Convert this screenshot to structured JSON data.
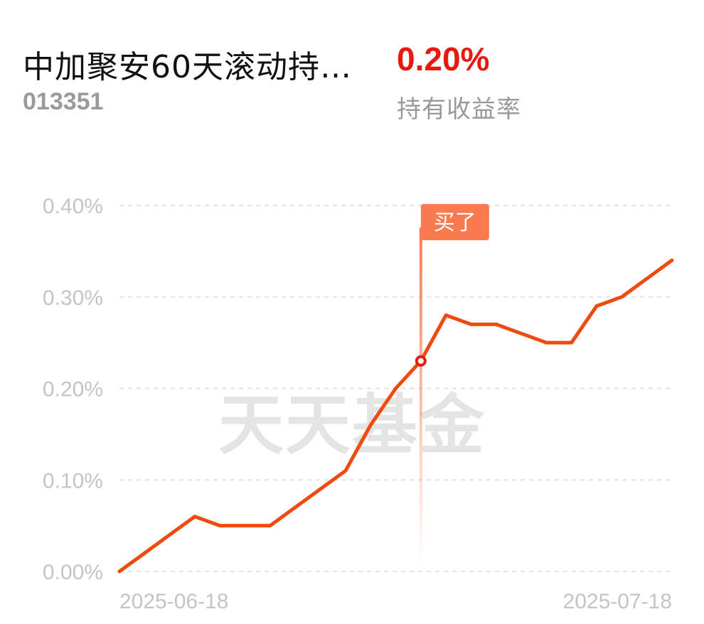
{
  "header": {
    "fund_name": "中加聚安60天滚动持…",
    "fund_code": "013351",
    "return_value": "0.20%",
    "return_label": "持有收益率"
  },
  "watermark": "天天基金",
  "buy_marker": {
    "label": "买了",
    "index": 12
  },
  "colors": {
    "line": "#f04b0f",
    "return": "#e8190f",
    "marker": "#fa7a50",
    "grid": "#e2e2e2",
    "tick": "#c4c4c4"
  },
  "chart_data": {
    "type": "line",
    "x_tick_labels": [
      "2025-06-18",
      "2025-07-18"
    ],
    "y_tick_labels": [
      "0.40%",
      "0.30%",
      "0.20%",
      "0.10%",
      "0.00%"
    ],
    "ylim": [
      0.0,
      0.4
    ],
    "grid": true,
    "series": [
      {
        "values": [
          0.0,
          0.02,
          0.04,
          0.06,
          0.05,
          0.05,
          0.05,
          0.07,
          0.09,
          0.11,
          0.16,
          0.2,
          0.23,
          0.28,
          0.27,
          0.27,
          0.26,
          0.25,
          0.25,
          0.29,
          0.3,
          0.32,
          0.34
        ]
      }
    ]
  }
}
